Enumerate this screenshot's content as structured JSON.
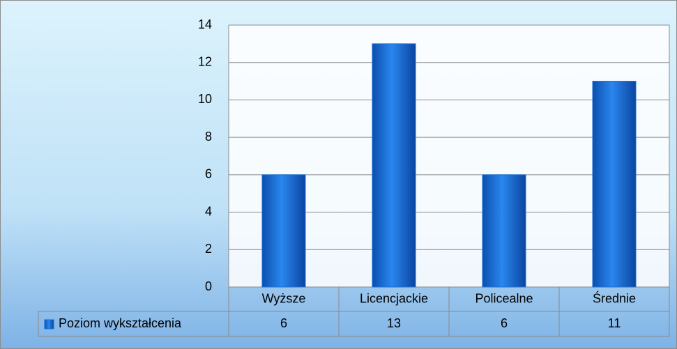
{
  "chart_data": {
    "type": "bar",
    "categories": [
      "Wyższe",
      "Licencjackie",
      "Policealne",
      "Średnie"
    ],
    "series": [
      {
        "name": "Poziom wykształcenia",
        "color": "#1a6fd6",
        "values": [
          6,
          13,
          6,
          11
        ]
      }
    ],
    "ylim": [
      0,
      14
    ],
    "yticks": [
      0,
      2,
      4,
      6,
      8,
      10,
      12,
      14
    ],
    "grid": true,
    "data_table": true
  }
}
